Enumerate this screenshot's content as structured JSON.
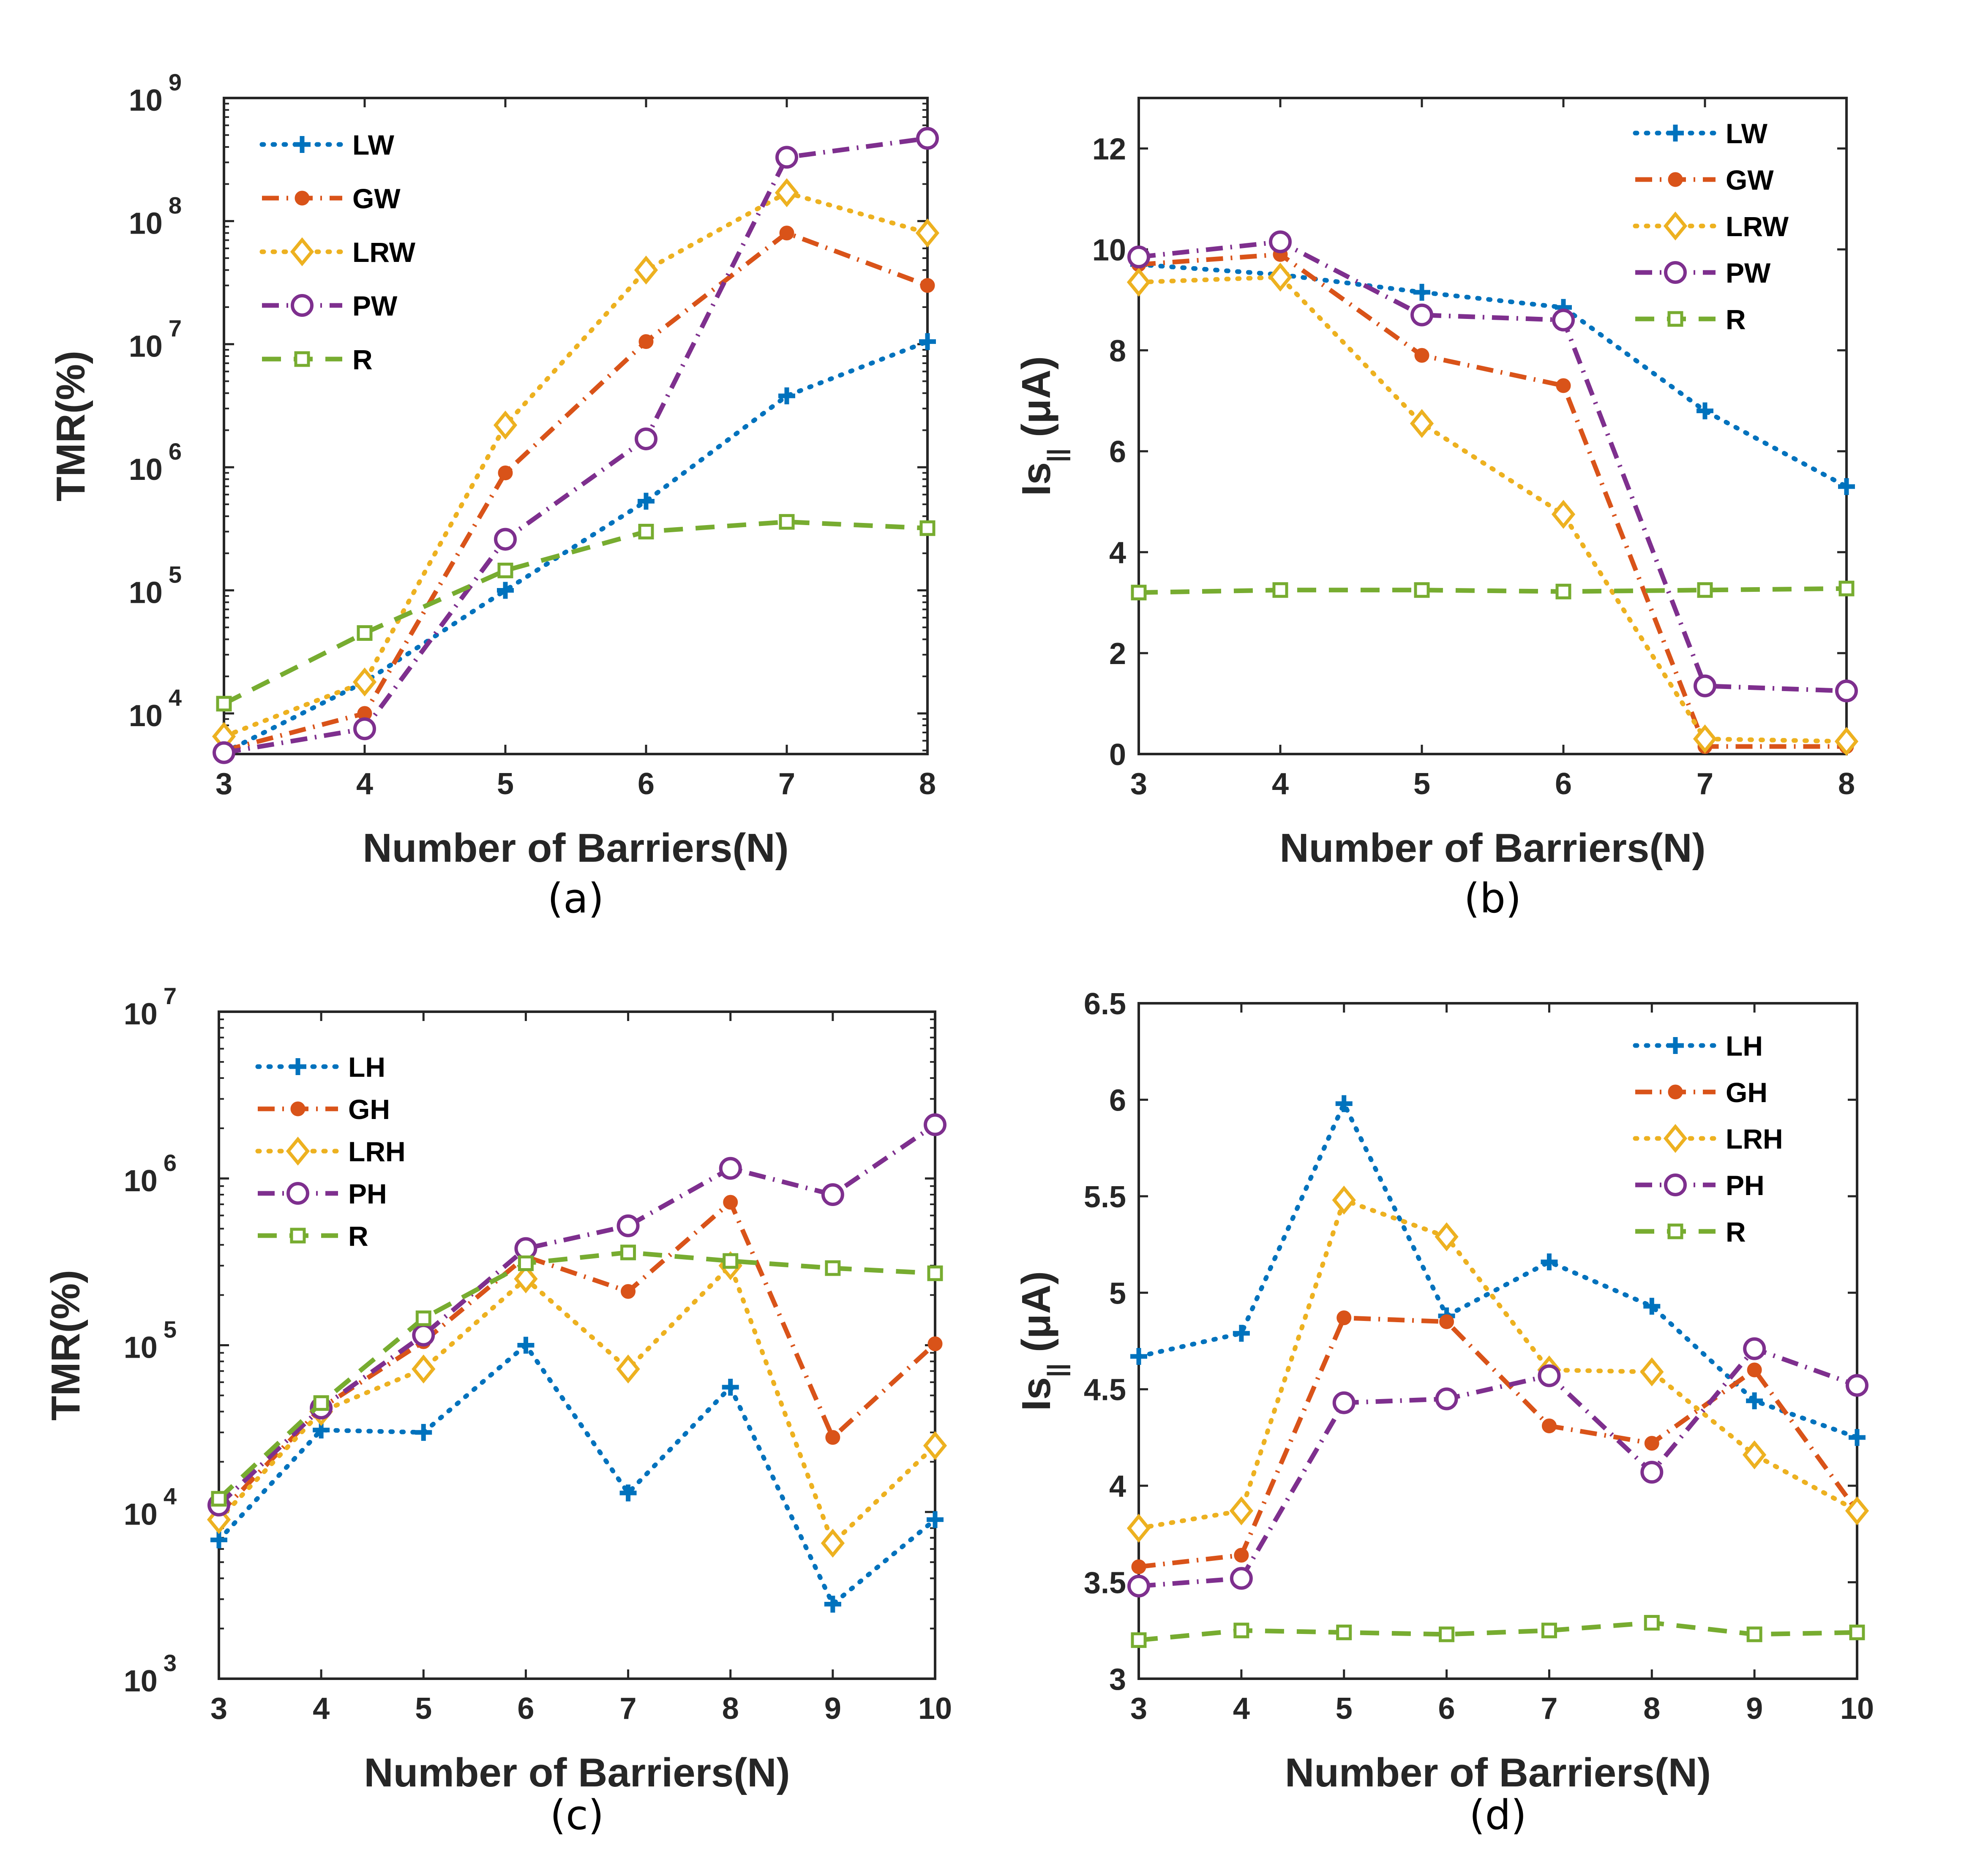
{
  "colors": {
    "blue": "#0072BD",
    "orange": "#D95319",
    "yellow": "#EDB120",
    "purple": "#7E2F8E",
    "green": "#77AC30",
    "axis": "#262626"
  },
  "chart_data": [
    {
      "panel_label": "(a)",
      "type": "line",
      "yscale": "log",
      "xlabel": "Number of Barriers(N)",
      "ylabel": "TMR(%)",
      "xlim": [
        3,
        8
      ],
      "ylim_exp": [
        3.67,
        9
      ],
      "x": [
        3,
        4,
        5,
        6,
        7,
        8
      ],
      "xticks": [
        "3",
        "4",
        "5",
        "6",
        "7",
        "8"
      ],
      "yticks_exp": [
        "4",
        "5",
        "6",
        "7",
        "8",
        "9"
      ],
      "legend_position": "top-left",
      "series": [
        {
          "name": "LW",
          "style": "dotted",
          "marker": "plus",
          "color": "#0072BD",
          "values": [
            4800,
            18000,
            100000,
            530000,
            3800000,
            10500000
          ]
        },
        {
          "name": "GW",
          "style": "dashdot",
          "marker": "dot",
          "color": "#D95319",
          "values": [
            5000,
            10000,
            900000,
            10500000,
            80000000,
            30000000
          ]
        },
        {
          "name": "LRW",
          "style": "dotted",
          "marker": "diamond",
          "color": "#EDB120",
          "values": [
            6500,
            18000,
            2200000,
            40000000,
            170000000,
            80000000
          ]
        },
        {
          "name": "PW",
          "style": "dashdot",
          "marker": "circle",
          "color": "#7E2F8E",
          "values": [
            4800,
            7500,
            260000,
            1700000,
            330000000,
            470000000
          ]
        },
        {
          "name": "R",
          "style": "dashed",
          "marker": "square",
          "color": "#77AC30",
          "values": [
            12000,
            45000,
            145000,
            300000,
            360000,
            320000
          ]
        }
      ]
    },
    {
      "panel_label": "(b)",
      "type": "line",
      "yscale": "linear",
      "xlabel": "Number of Barriers(N)",
      "ylabel": "Is",
      "ylabel_sub": "||",
      "ylabel_unit": " (μA)",
      "xlim": [
        3,
        8
      ],
      "ylim": [
        0,
        13
      ],
      "x": [
        3,
        4,
        5,
        6,
        7,
        8
      ],
      "xticks": [
        "3",
        "4",
        "5",
        "6",
        "7",
        "8"
      ],
      "yticks": [
        "0",
        "2",
        "4",
        "6",
        "8",
        "10",
        "12"
      ],
      "legend_position": "top-right",
      "series": [
        {
          "name": "LW",
          "style": "dotted",
          "marker": "plus",
          "color": "#0072BD",
          "values": [
            9.7,
            9.5,
            9.15,
            8.85,
            6.8,
            5.3
          ]
        },
        {
          "name": "GW",
          "style": "dashdot",
          "marker": "dot",
          "color": "#D95319",
          "values": [
            9.7,
            9.9,
            7.9,
            7.3,
            0.15,
            0.15
          ]
        },
        {
          "name": "LRW",
          "style": "dotted",
          "marker": "diamond",
          "color": "#EDB120",
          "values": [
            9.35,
            9.45,
            6.55,
            4.75,
            0.3,
            0.25
          ]
        },
        {
          "name": "PW",
          "style": "dashdot",
          "marker": "circle",
          "color": "#7E2F8E",
          "values": [
            9.85,
            10.15,
            8.7,
            8.6,
            1.35,
            1.25
          ]
        },
        {
          "name": "R",
          "style": "dashed",
          "marker": "square",
          "color": "#77AC30",
          "values": [
            3.2,
            3.25,
            3.25,
            3.22,
            3.25,
            3.28
          ]
        }
      ]
    },
    {
      "panel_label": "(c)",
      "type": "line",
      "yscale": "log",
      "xlabel": "Number of Barriers(N)",
      "ylabel": "TMR(%)",
      "xlim": [
        3,
        10
      ],
      "ylim_exp": [
        3,
        7
      ],
      "x": [
        3,
        4,
        5,
        6,
        7,
        8,
        9,
        10
      ],
      "xticks": [
        "3",
        "4",
        "5",
        "6",
        "7",
        "8",
        "9",
        "10"
      ],
      "yticks_exp": [
        "3",
        "4",
        "5",
        "6",
        "7"
      ],
      "legend_position": "top-left",
      "series": [
        {
          "name": "LH",
          "style": "dotted",
          "marker": "plus",
          "color": "#0072BD",
          "values": [
            6800,
            31000,
            30000,
            100000,
            13000,
            56000,
            2800,
            9000
          ]
        },
        {
          "name": "GH",
          "style": "dashdot",
          "marker": "dot",
          "color": "#D95319",
          "values": [
            9700,
            42000,
            105000,
            340000,
            210000,
            720000,
            28000,
            102000
          ]
        },
        {
          "name": "LRH",
          "style": "dotted",
          "marker": "diamond",
          "color": "#EDB120",
          "values": [
            9000,
            40000,
            72000,
            250000,
            72000,
            300000,
            6500,
            25000
          ]
        },
        {
          "name": "PH",
          "style": "dashdot",
          "marker": "circle",
          "color": "#7E2F8E",
          "values": [
            11000,
            42000,
            115000,
            380000,
            520000,
            1150000,
            800000,
            2100000
          ]
        },
        {
          "name": "R",
          "style": "dashed",
          "marker": "square",
          "color": "#77AC30",
          "values": [
            12000,
            45000,
            145000,
            310000,
            360000,
            320000,
            290000,
            270000
          ]
        }
      ]
    },
    {
      "panel_label": "(d)",
      "type": "line",
      "yscale": "linear",
      "xlabel": "Number of Barriers(N)",
      "ylabel": "Is",
      "ylabel_sub": "||",
      "ylabel_unit": " (μA)",
      "xlim": [
        3,
        10
      ],
      "ylim": [
        3,
        6.5
      ],
      "x": [
        3,
        4,
        5,
        6,
        7,
        8,
        9,
        10
      ],
      "xticks": [
        "3",
        "4",
        "5",
        "6",
        "7",
        "8",
        "9",
        "10"
      ],
      "yticks": [
        "3",
        "3.5",
        "4",
        "4.5",
        "5",
        "5.5",
        "6",
        "6.5"
      ],
      "legend_position": "top-right",
      "series": [
        {
          "name": "LH",
          "style": "dotted",
          "marker": "plus",
          "color": "#0072BD",
          "values": [
            4.67,
            4.79,
            5.98,
            4.88,
            5.16,
            4.93,
            4.44,
            4.25
          ]
        },
        {
          "name": "GH",
          "style": "dashdot",
          "marker": "dot",
          "color": "#D95319",
          "values": [
            3.58,
            3.64,
            4.87,
            4.85,
            4.31,
            4.22,
            4.6,
            3.87
          ]
        },
        {
          "name": "LRH",
          "style": "dotted",
          "marker": "diamond",
          "color": "#EDB120",
          "values": [
            3.78,
            3.87,
            5.48,
            5.29,
            4.6,
            4.59,
            4.16,
            3.87
          ]
        },
        {
          "name": "PH",
          "style": "dashdot",
          "marker": "circle",
          "color": "#7E2F8E",
          "values": [
            3.48,
            3.52,
            4.43,
            4.45,
            4.57,
            4.07,
            4.71,
            4.52
          ]
        },
        {
          "name": "R",
          "style": "dashed",
          "marker": "square",
          "color": "#77AC30",
          "values": [
            3.2,
            3.25,
            3.24,
            3.23,
            3.25,
            3.29,
            3.23,
            3.24
          ]
        }
      ]
    }
  ]
}
